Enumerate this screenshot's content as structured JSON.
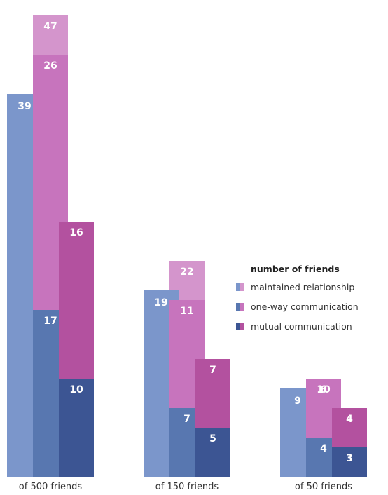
{
  "chart_data": {
    "type": "bar",
    "categories": [
      "of 500 friends",
      "of 150 friends",
      "of 50 friends"
    ],
    "legend_title": "number of friends",
    "legend_position": "right-center",
    "grid": false,
    "ylim": [
      0,
      50
    ],
    "groups": [
      {
        "category": "of 500 friends",
        "main": {
          "value": 39,
          "label": "39"
        },
        "stacks": [
          {
            "series": [
              "maintained relationship"
            ],
            "values": [
              47
            ],
            "labels": [
              "47"
            ]
          },
          {
            "series": [
              "one-way communication",
              "maintained relationship"
            ],
            "values": [
              17,
              26
            ],
            "labels": [
              "17",
              "26"
            ]
          },
          {
            "series": [
              "mutual communication",
              "one-way communication"
            ],
            "values": [
              10,
              16
            ],
            "labels": [
              "10",
              "16"
            ]
          }
        ]
      },
      {
        "category": "of 150 friends",
        "main": {
          "value": 19,
          "label": "19"
        },
        "stacks": [
          {
            "series": [
              "maintained relationship"
            ],
            "values": [
              22
            ],
            "labels": [
              "22"
            ]
          },
          {
            "series": [
              "one-way communication",
              "maintained relationship"
            ],
            "values": [
              7,
              11
            ],
            "labels": [
              "7",
              "11"
            ]
          },
          {
            "series": [
              "mutual communication",
              "one-way communication"
            ],
            "values": [
              5,
              7
            ],
            "labels": [
              "5",
              "7"
            ]
          }
        ]
      },
      {
        "category": "of 50 friends",
        "main": {
          "value": 9,
          "label": "9"
        },
        "stacks": [
          {
            "series": [
              "maintained relationship"
            ],
            "values": [
              10
            ],
            "labels": [
              "10"
            ]
          },
          {
            "series": [
              "one-way communication",
              "maintained relationship"
            ],
            "values": [
              4,
              6
            ],
            "labels": [
              "4",
              "6"
            ]
          },
          {
            "series": [
              "mutual communication",
              "one-way communication"
            ],
            "values": [
              3,
              4
            ],
            "labels": [
              "3",
              "4"
            ]
          }
        ]
      }
    ],
    "legend": [
      {
        "name": "maintained relationship"
      },
      {
        "name": "one-way communication"
      },
      {
        "name": "mutual communication"
      }
    ],
    "colors": {
      "main": "#7b96cb",
      "maintained relationship": "#d495cc",
      "one-way communication blue": "#5877b0",
      "one-way communication pink": "#c774bd",
      "mutual communication": "#3c5593",
      "one-way communication stacked": "#b3519f",
      "label_light": "#ffffff"
    }
  }
}
